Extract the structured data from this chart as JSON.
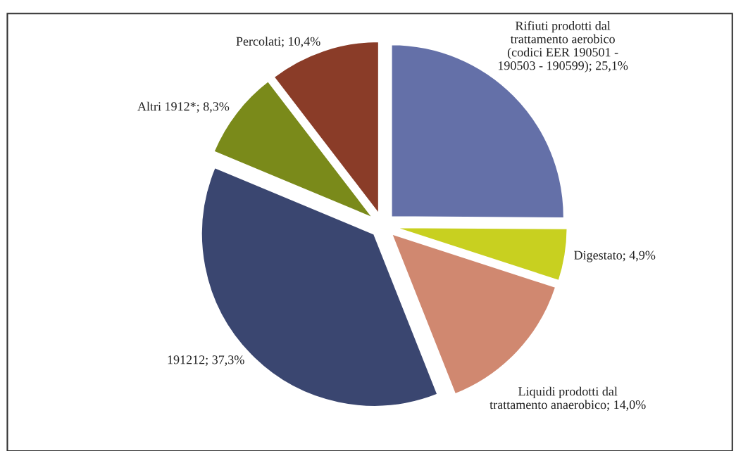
{
  "chart_data": {
    "type": "pie",
    "categories": [
      "Rifiuti prodotti dal\ntrattamento aerobico\n(codici EER 190501 -\n190503 - 190599)",
      "Digestato",
      "Liquidi prodotti dal\ntrattamento anaerobico",
      "191212",
      "Altri 1912*",
      "Percolati"
    ],
    "values": [
      25.1,
      4.9,
      14.0,
      37.3,
      8.3,
      10.4
    ],
    "value_labels": [
      "25,1%",
      "4,9%",
      "14,0%",
      "37,3%",
      "8,3%",
      "10,4%"
    ],
    "colors": [
      "#6470a8",
      "#c8d020",
      "#d08870",
      "#3a4670",
      "#7a8a1a",
      "#8a3c28"
    ],
    "legend": false
  }
}
